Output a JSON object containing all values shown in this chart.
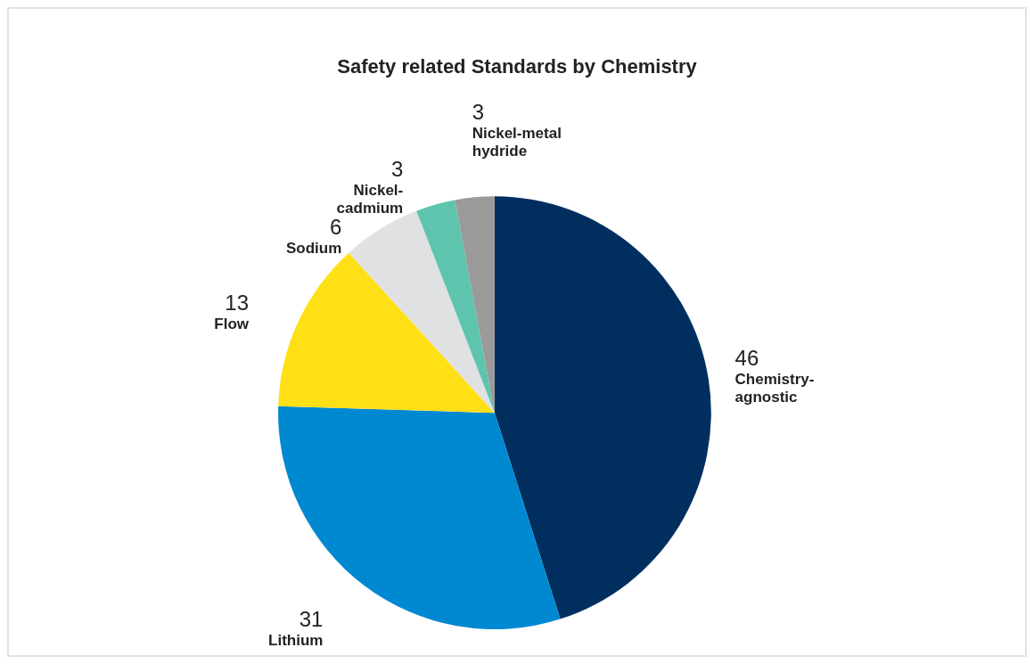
{
  "chart_data": {
    "type": "pie",
    "title": "Safety related Standards by Chemistry",
    "categories": [
      "Chemistry-\nagnostic",
      "Lithium",
      "Flow",
      "Sodium",
      "Nickel-\ncadmium",
      "Nickel-metal\nhydride"
    ],
    "values": [
      46,
      31,
      13,
      6,
      3,
      3
    ],
    "colors": [
      "#002f5f",
      "#0089d1",
      "#ffe017",
      "#e0e1e3",
      "#5ec4ad",
      "#9a9a9a"
    ],
    "data_labels": true,
    "legend": false
  }
}
